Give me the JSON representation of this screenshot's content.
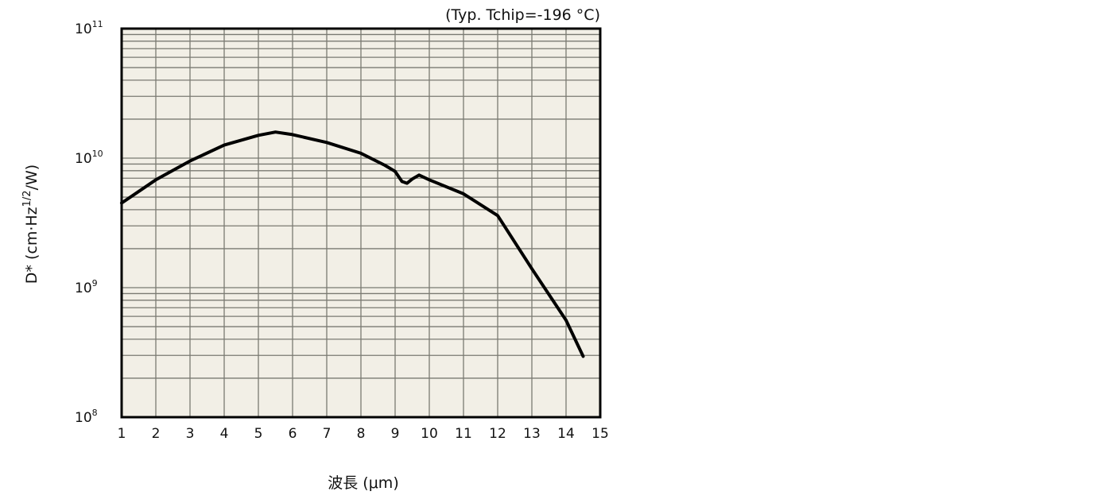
{
  "chart_data": {
    "type": "line",
    "title": "",
    "annotation": "(Typ. Tchip=-196 °C)",
    "xlabel": "波長 (μm)",
    "ylabel": "D* (cm·Hz",
    "ylabel_sup": "1/2",
    "ylabel_tail": "/W)",
    "xlim": [
      1,
      15
    ],
    "ylim": [
      100000000.0,
      100000000000.0
    ],
    "yscale": "log",
    "grid": true,
    "x_ticks": [
      "1",
      "2",
      "3",
      "4",
      "5",
      "6",
      "7",
      "8",
      "9",
      "10",
      "11",
      "12",
      "13",
      "14",
      "15"
    ],
    "y_ticks": [
      {
        "base": "10",
        "exp": "11",
        "value": 100000000000.0
      },
      {
        "base": "10",
        "exp": "10",
        "value": 10000000000.0
      },
      {
        "base": "10",
        "exp": "9",
        "value": 1000000000.0
      },
      {
        "base": "10",
        "exp": "8",
        "value": 100000000.0
      }
    ],
    "colors": {
      "plot_bg": "#f2efe6",
      "grid": "#7a7a72",
      "line": "#000000"
    },
    "series": [
      {
        "name": "D*",
        "x": [
          1,
          2,
          3,
          4,
          5,
          5.5,
          6,
          7,
          8,
          8.7,
          9,
          9.2,
          9.35,
          9.5,
          9.7,
          10,
          11,
          12,
          13,
          14,
          14.5
        ],
        "y": [
          4500000000.0,
          6800000000.0,
          9500000000.0,
          12600000000.0,
          15000000000.0,
          15900000000.0,
          15200000000.0,
          13200000000.0,
          10900000000.0,
          8800000000.0,
          7900000000.0,
          6600000000.0,
          6400000000.0,
          6900000000.0,
          7400000000.0,
          6800000000.0,
          5300000000.0,
          3600000000.0,
          1400000000.0,
          560000000.0,
          295000000.0
        ]
      }
    ]
  }
}
